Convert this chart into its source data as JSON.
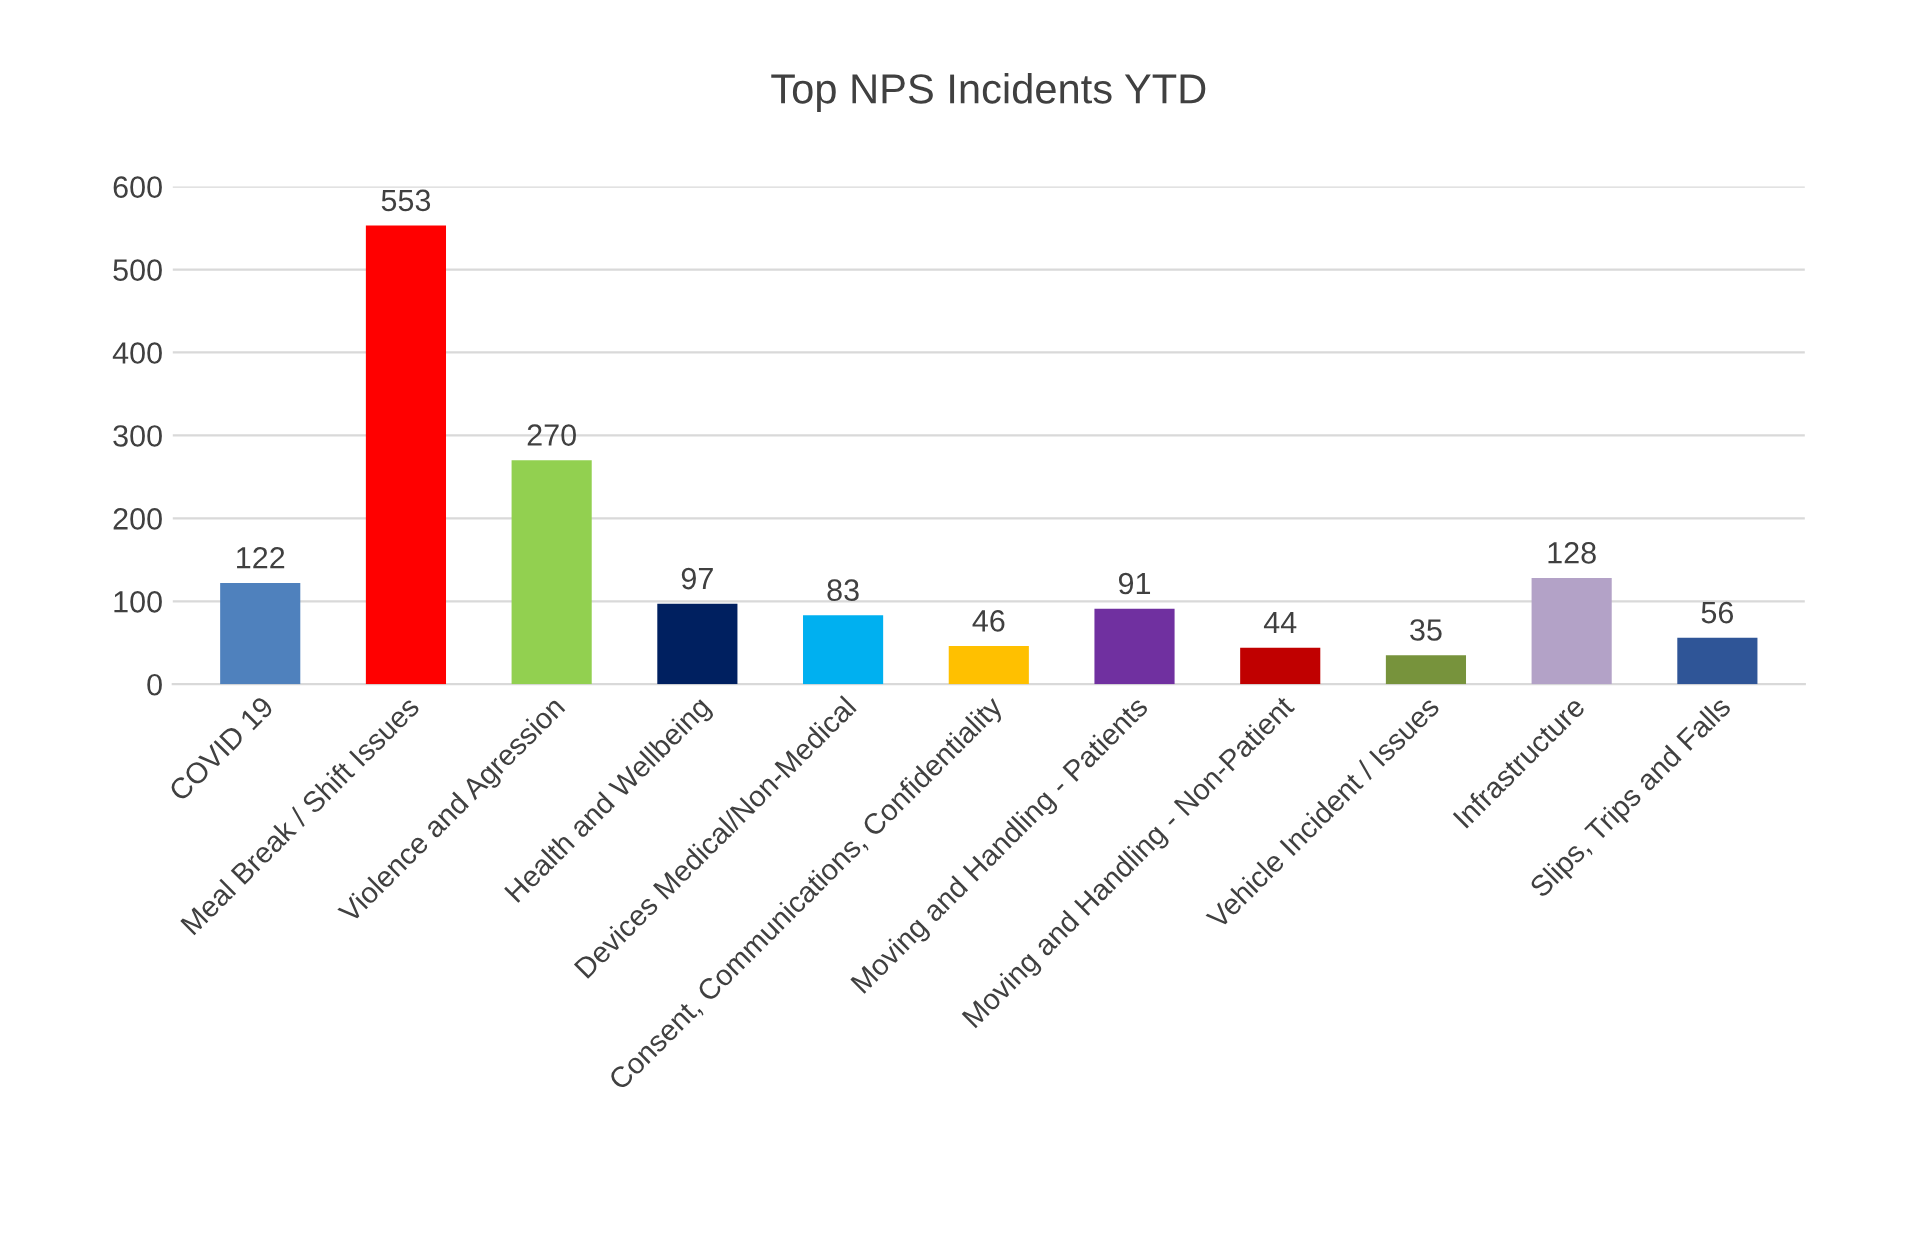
{
  "chart_data": {
    "type": "bar",
    "title": "Top NPS Incidents YTD",
    "categories": [
      "COVID 19",
      "Meal Break / Shift Issues",
      "Violence and Agression",
      "Health and Wellbeing",
      "Devices Medical/Non-Medical",
      "Consent, Communications, Confidentiality",
      "Moving and Handling - Patients",
      "Moving and Handling - Non-Patient",
      "Vehicle Incident / Issues",
      "Infrastructure",
      "Slips, Trips and Falls"
    ],
    "values": [
      122,
      553,
      270,
      97,
      83,
      46,
      91,
      44,
      35,
      128,
      56
    ],
    "colors": [
      "#4f81bd",
      "#ff0000",
      "#92d050",
      "#002060",
      "#00b0f0",
      "#ffc000",
      "#7030a0",
      "#c00000",
      "#77933c",
      "#b3a2c7",
      "#2f5597"
    ],
    "ylim": [
      0,
      600
    ],
    "yticks": [
      0,
      100,
      200,
      300,
      400,
      500,
      600
    ],
    "grid": "y",
    "data_labels": true
  }
}
